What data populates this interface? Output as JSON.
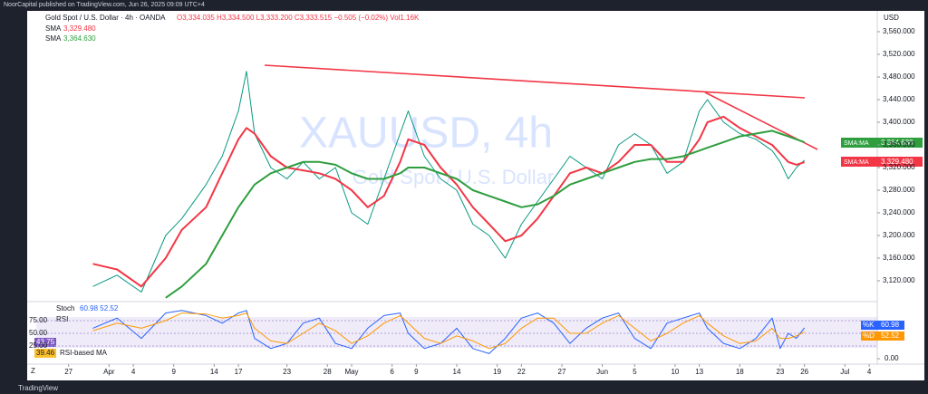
{
  "header": "NoorCapital published on TradingView.com, Jun 26, 2025 09:09 UTC+4",
  "footer": "TradingView",
  "currency": "USD",
  "watermark": {
    "symbol": "XAUUSD, 4h",
    "description": "Gold Spot / U.S. Dollar"
  },
  "legend": {
    "symbol": "Gold Spot / U.S. Dollar · 4h · OANDA",
    "ohlc": "O3,334.035 H3,334.500 L3,333.200 C3,333.515 −0.505 (−0.02%) Vol1.16K",
    "sma": [
      {
        "name": "SMA",
        "value": "3,329.480"
      },
      {
        "name": "SMA",
        "value": "3,364.630"
      }
    ]
  },
  "price_badges": [
    {
      "label": "SMA:MA",
      "value": "3,364.630"
    },
    {
      "label": "SMA:MA",
      "value": "3,329.480"
    }
  ],
  "oscillator_legend": {
    "stoch": "Stoch",
    "stoch_values": "60.98 52.52",
    "rsi": "RSI",
    "rsi_value": "43.75",
    "rsi_ma_value": "39.46",
    "rsi_ma": "RSI-based MA"
  },
  "oscillator_badges": [
    {
      "label": "%K",
      "value": "60.98"
    },
    {
      "label": "%D",
      "value": "52.52"
    }
  ],
  "corner": "Z",
  "chart_data": [
    {
      "type": "line",
      "x": [
        3,
        6,
        9,
        12,
        14,
        17,
        19,
        21,
        22,
        23,
        25,
        27,
        29,
        31,
        33,
        35,
        37,
        39,
        41,
        42,
        44,
        46,
        48,
        50,
        52,
        54,
        56,
        58,
        60,
        62,
        64,
        66,
        68,
        70,
        72,
        74,
        76,
        78,
        79,
        81,
        83,
        85,
        87,
        88,
        89,
        90,
        91
      ],
      "series": [
        {
          "name": "Price",
          "color": "#089981",
          "values": [
            3110,
            3130,
            3100,
            3200,
            3230,
            3290,
            3340,
            3420,
            3490,
            3380,
            3320,
            3300,
            3330,
            3300,
            3320,
            3240,
            3220,
            3300,
            3380,
            3420,
            3340,
            3300,
            3280,
            3220,
            3200,
            3160,
            3220,
            3260,
            3300,
            3340,
            3320,
            3300,
            3360,
            3380,
            3360,
            3310,
            3330,
            3420,
            3440,
            3400,
            3380,
            3370,
            3350,
            3330,
            3300,
            3320,
            3333
          ]
        },
        {
          "name": "SMA",
          "color": "#f23645",
          "values": [
            3150,
            3140,
            3110,
            3160,
            3210,
            3250,
            3310,
            3370,
            3390,
            3380,
            3340,
            3320,
            3315,
            3310,
            3300,
            3280,
            3250,
            3270,
            3330,
            3370,
            3360,
            3320,
            3290,
            3250,
            3220,
            3190,
            3200,
            3230,
            3270,
            3310,
            3320,
            3310,
            3330,
            3360,
            3360,
            3330,
            3330,
            3370,
            3400,
            3410,
            3390,
            3375,
            3360,
            3345,
            3330,
            3325,
            3329.48
          ]
        },
        {
          "name": "SMA",
          "color": "#2e9e3e",
          "values": [
            null,
            null,
            null,
            3090,
            3110,
            3150,
            3200,
            3250,
            3270,
            3290,
            3310,
            3320,
            3330,
            3330,
            3325,
            3310,
            3300,
            3300,
            3310,
            3320,
            3320,
            3310,
            3300,
            3280,
            3270,
            3260,
            3250,
            3255,
            3270,
            3290,
            3300,
            3310,
            3320,
            3330,
            3335,
            3335,
            3340,
            3350,
            3355,
            3365,
            3375,
            3380,
            3385,
            3380,
            3375,
            3370,
            3364.63
          ]
        }
      ],
      "xlim": [
        -4,
        100
      ],
      "xticks": [
        {
          "value": 0,
          "label": "27"
        },
        {
          "value": 5,
          "label": "Apr"
        },
        {
          "value": 8,
          "label": "4"
        },
        {
          "value": 13,
          "label": "9"
        },
        {
          "value": 18,
          "label": "14"
        },
        {
          "value": 21,
          "label": "17"
        },
        {
          "value": 27,
          "label": "23"
        },
        {
          "value": 32,
          "label": "28"
        },
        {
          "value": 35,
          "label": "May"
        },
        {
          "value": 40,
          "label": "6"
        },
        {
          "value": 43,
          "label": "9"
        },
        {
          "value": 48,
          "label": "14"
        },
        {
          "value": 53,
          "label": "19"
        },
        {
          "value": 56,
          "label": "22"
        },
        {
          "value": 61,
          "label": "27"
        },
        {
          "value": 66,
          "label": "Jun"
        },
        {
          "value": 70,
          "label": "5"
        },
        {
          "value": 75,
          "label": "10"
        },
        {
          "value": 78,
          "label": "13"
        },
        {
          "value": 83,
          "label": "18"
        },
        {
          "value": 88,
          "label": "23"
        },
        {
          "value": 91,
          "label": "26"
        },
        {
          "value": 96,
          "label": "Jul"
        },
        {
          "value": 99,
          "label": "4"
        }
      ],
      "ylim": [
        3088,
        3592
      ],
      "yticks": [
        {
          "value": 3120,
          "label": "3,120.000"
        },
        {
          "value": 3160,
          "label": "3,160.000"
        },
        {
          "value": 3200,
          "label": "3,200.000"
        },
        {
          "value": 3240,
          "label": "3,240.000"
        },
        {
          "value": 3280,
          "label": "3,280.000"
        },
        {
          "value": 3320,
          "label": "3,320.000"
        },
        {
          "value": 3360,
          "label": "3,360.000"
        },
        {
          "value": 3400,
          "label": "3,400.000"
        },
        {
          "value": 3440,
          "label": "3,440.000"
        },
        {
          "value": 3480,
          "label": "3,480.000"
        },
        {
          "value": 3520,
          "label": "3,520.000"
        },
        {
          "value": 3560,
          "label": "3,560.000"
        }
      ]
    },
    {
      "type": "line",
      "series": [
        {
          "name": "%K",
          "color": "#2962ff",
          "values": [
            60,
            80,
            40,
            90,
            95,
            85,
            70,
            90,
            95,
            40,
            20,
            30,
            70,
            80,
            30,
            20,
            60,
            85,
            90,
            50,
            20,
            30,
            60,
            20,
            10,
            40,
            80,
            90,
            70,
            30,
            60,
            80,
            90,
            40,
            20,
            70,
            80,
            90,
            60,
            30,
            20,
            40,
            80,
            20,
            50,
            40,
            60.98
          ]
        },
        {
          "name": "%D",
          "color": "#ff9800",
          "values": [
            55,
            70,
            60,
            75,
            90,
            88,
            80,
            85,
            90,
            60,
            35,
            30,
            50,
            70,
            55,
            30,
            45,
            70,
            85,
            70,
            40,
            30,
            45,
            35,
            20,
            30,
            60,
            80,
            80,
            50,
            50,
            70,
            85,
            60,
            35,
            50,
            70,
            85,
            70,
            45,
            30,
            35,
            60,
            40,
            40,
            45,
            52.52
          ]
        }
      ],
      "ylim": [
        0,
        100
      ],
      "yticks": [
        {
          "value": 25,
          "label": "25.00"
        },
        {
          "value": 50,
          "label": "50.00"
        },
        {
          "value": 75,
          "label": "75.00"
        }
      ],
      "y2lim": [
        0,
        100
      ],
      "y2ticks": [
        {
          "value": 0,
          "label": "0.00"
        }
      ]
    }
  ]
}
